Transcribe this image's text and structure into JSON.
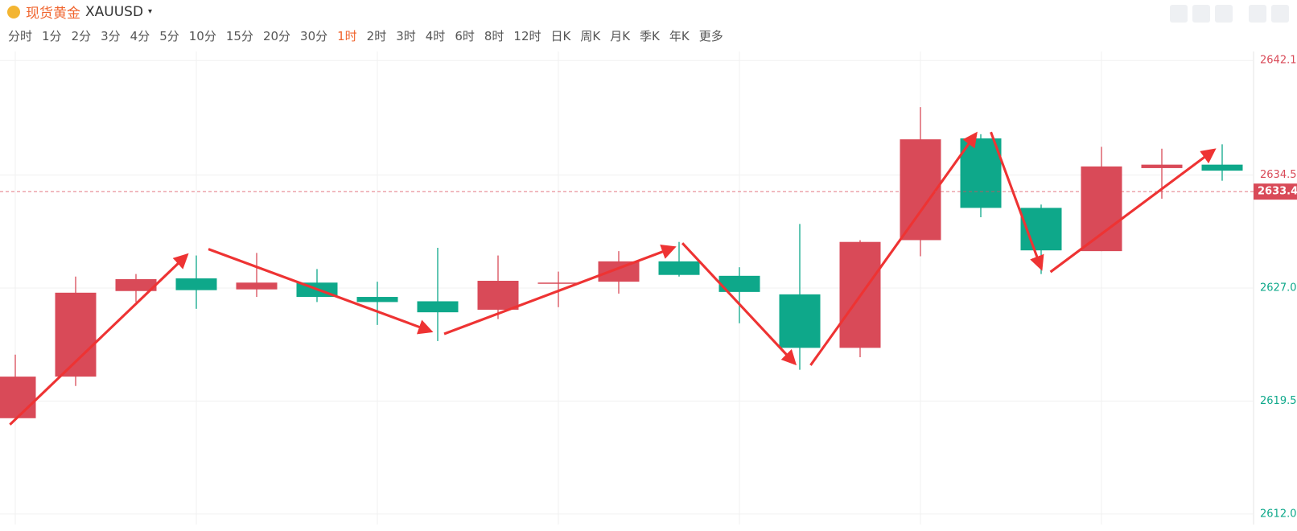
{
  "header": {
    "title": "现货黄金",
    "symbol": "XAUUSD",
    "timeframes": [
      "分时",
      "1分",
      "2分",
      "3分",
      "4分",
      "5分",
      "10分",
      "15分",
      "20分",
      "30分",
      "1时",
      "2时",
      "3时",
      "4时",
      "6时",
      "8时",
      "12时",
      "日K",
      "周K",
      "月K",
      "季K",
      "年K",
      "更多"
    ],
    "active_timeframe": 10
  },
  "chart_data": {
    "type": "candlestick",
    "up_color": "#d94a58",
    "down_color": "#0ea88a",
    "open": [
      2618.36,
      2621.12,
      2626.8,
      2627.64,
      2626.91,
      2627.36,
      2626.41,
      2626.12,
      2625.56,
      2627.36,
      2627.42,
      2628.77,
      2627.81,
      2626.58,
      2623.03,
      2630.18,
      2636.93,
      2632.32,
      2629.45,
      2634.96,
      2635.19
    ],
    "high": [
      2622.58,
      2627.76,
      2627.93,
      2629.16,
      2629.33,
      2628.26,
      2627.42,
      2629.67,
      2629.16,
      2628.09,
      2629.45,
      2630.06,
      2628.38,
      2631.25,
      2630.18,
      2639.01,
      2637.21,
      2632.54,
      2636.37,
      2636.25,
      2636.54
    ],
    "low": [
      2618.36,
      2620.5,
      2626.07,
      2625.62,
      2626.41,
      2626.07,
      2624.55,
      2623.48,
      2624.94,
      2625.73,
      2626.63,
      2627.76,
      2624.66,
      2621.57,
      2622.41,
      2629.11,
      2631.7,
      2627.93,
      2629.45,
      2632.93,
      2634.12
    ],
    "close": [
      2621.12,
      2626.69,
      2627.59,
      2626.86,
      2627.36,
      2626.41,
      2626.07,
      2625.39,
      2627.48,
      2627.36,
      2628.77,
      2627.87,
      2626.74,
      2623.03,
      2630.06,
      2636.87,
      2632.32,
      2629.5,
      2635.07,
      2635.19,
      2634.79
    ],
    "current_price": 2633.4,
    "ylim": [
      2611.3,
      2642.7
    ],
    "yticks": [
      {
        "value": 2612,
        "label": "2612.0"
      },
      2619.5,
      {
        "value": 2627,
        "label": "2627.0"
      },
      2634.5,
      2642.1
    ],
    "grid": true
  }
}
